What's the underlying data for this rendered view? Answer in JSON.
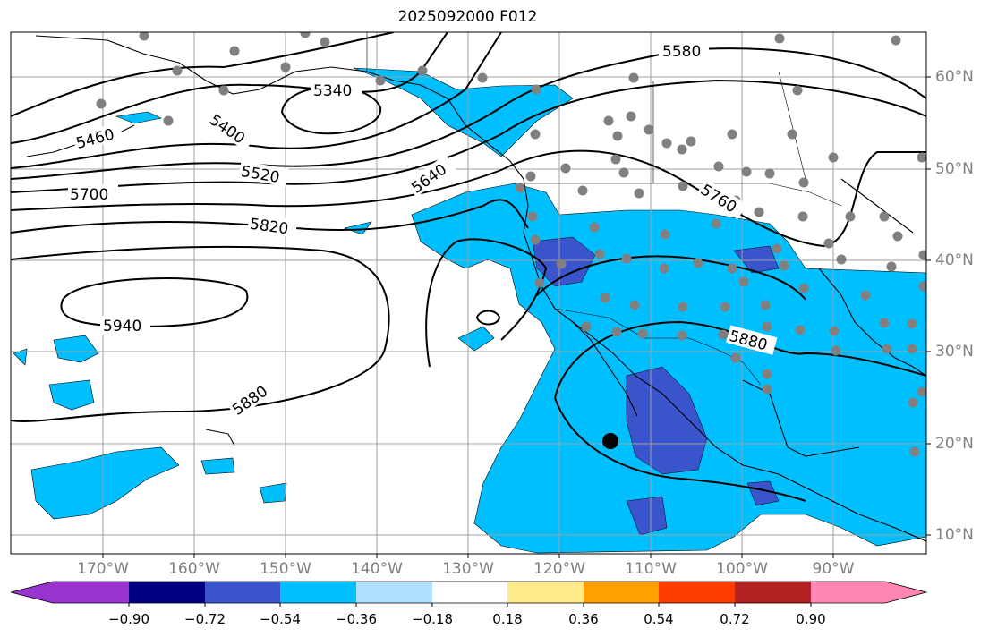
{
  "title": "2025092000 F012",
  "lat_labels": [
    "60°N",
    "50°N",
    "40°N",
    "30°N",
    "20°N",
    "10°N"
  ],
  "lon_labels": [
    "170°W",
    "160°W",
    "150°W",
    "140°W",
    "130°W",
    "120°W",
    "110°W",
    "100°W",
    "90°W"
  ],
  "contour_labels": [
    "5580",
    "5340",
    "5400",
    "5460",
    "5520",
    "5640",
    "5700",
    "5760",
    "5820",
    "5880",
    "5880",
    "5940"
  ],
  "colorbar": {
    "ticks": [
      "−0.90",
      "−0.72",
      "−0.54",
      "−0.36",
      "−0.18",
      "0.18",
      "0.36",
      "0.54",
      "0.72",
      "0.90"
    ],
    "colors": [
      "#9a34d0",
      "#000080",
      "#3a55cc",
      "#00bfff",
      "#b0e0ff",
      "#ffffff",
      "#ffeb8c",
      "#ffa000",
      "#ff3c00",
      "#b22222",
      "#ff86b4"
    ]
  },
  "colors": {
    "grid": "#a0a0a0",
    "station": "#808080",
    "contour": "#000000",
    "fill_light": "#00bfff",
    "fill_dark": "#3a55cc"
  },
  "marker": {
    "label": "",
    "lon": -114.5,
    "lat": 20.3
  }
}
